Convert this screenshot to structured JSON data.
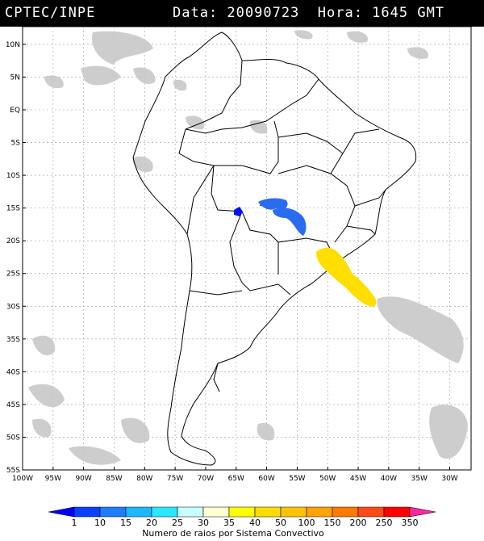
{
  "header": {
    "organization": "CPTEC/INPE",
    "datetime_text": "Data: 20090723  Hora: 1645 GMT"
  },
  "map": {
    "lat_labels": [
      "10N",
      "5N",
      "EQ",
      "5S",
      "10S",
      "15S",
      "20S",
      "25S",
      "30S",
      "35S",
      "40S",
      "45S",
      "50S",
      "55S"
    ],
    "lon_labels": [
      "100W",
      "95W",
      "90W",
      "85W",
      "80W",
      "75W",
      "70W",
      "65W",
      "60W",
      "55W",
      "50W",
      "45W",
      "40W",
      "35W",
      "30W"
    ],
    "background_color": "#ffffff",
    "cloud_color": "#c8c8c8",
    "border_color": "#000000"
  },
  "colorbar": {
    "ticks": [
      "1",
      "10",
      "15",
      "20",
      "25",
      "30",
      "35",
      "40",
      "50",
      "100",
      "150",
      "200",
      "250",
      "350"
    ],
    "colors": [
      "#0000ff",
      "#0a40ff",
      "#1e7cff",
      "#1cb8ff",
      "#28e8ff",
      "#c8ffff",
      "#ffffd0",
      "#ffff00",
      "#ffdd00",
      "#ffc400",
      "#ffa400",
      "#ff7a00",
      "#ff4a18",
      "#ff0000",
      "#ff2aa0"
    ],
    "title": "Numero de raios por Sistema Convectivo"
  },
  "systems": [
    {
      "lat": -16.0,
      "lon": -64.0,
      "color": "#0010ff"
    },
    {
      "lat": -16.5,
      "lon": -58.0,
      "color": "#2a6cf0"
    },
    {
      "lat": -18.0,
      "lon": -56.0,
      "color": "#2a6cf0"
    },
    {
      "lat": -26.5,
      "lon": -47.5,
      "color": "#ffde00"
    }
  ]
}
